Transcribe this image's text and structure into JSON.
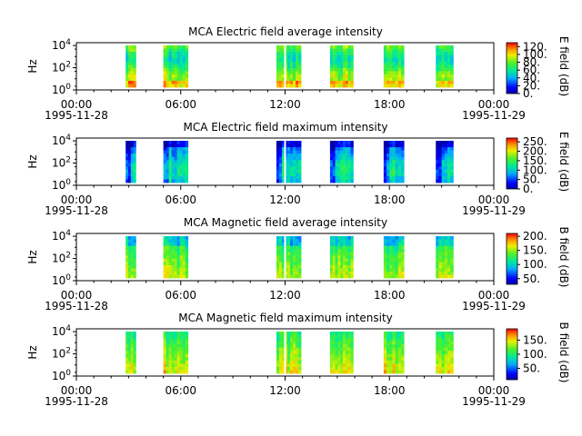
{
  "figure": {
    "x_ticks": [
      "00:00",
      "06:00",
      "12:00",
      "18:00",
      "00:00"
    ],
    "x_start_label": "1995-11-28",
    "x_end_label": "1995-11-29"
  },
  "chart_data": [
    {
      "type": "heatmap",
      "title": "MCA  Electric field average intensity",
      "ylabel": "Hz",
      "y_scale": "log",
      "y_tick_labels": [
        "10^0",
        "10^2",
        "10^4"
      ],
      "x_range": [
        "1995-11-28 00:00",
        "1995-11-29 00:00"
      ],
      "colorbar": {
        "label": "E field (dB)",
        "ticks": [
          "120.",
          "100.",
          "80.",
          "60.",
          "40.",
          "20.",
          "0."
        ],
        "range": [
          0,
          130
        ],
        "colormap": "rainbow"
      },
      "data_intervals": [
        [
          "02:50",
          "03:25"
        ],
        [
          "05:00",
          "06:25"
        ],
        [
          "11:30",
          "12:55"
        ],
        [
          "14:35",
          "15:55"
        ],
        [
          "17:40",
          "18:50"
        ],
        [
          "20:40",
          "21:40"
        ]
      ],
      "dominant_colors": [
        "#00d060",
        "#c8e020",
        "#ffd000",
        "#00a0ff"
      ]
    },
    {
      "type": "heatmap",
      "title": "MCA  Electric field maximum intensity",
      "ylabel": "Hz",
      "y_scale": "log",
      "y_tick_labels": [
        "10^0",
        "10^2",
        "10^4"
      ],
      "x_range": [
        "1995-11-28 00:00",
        "1995-11-29 00:00"
      ],
      "colorbar": {
        "label": "E field (dB)",
        "ticks": [
          "250.",
          "200.",
          "150.",
          "100.",
          "50.",
          "0."
        ],
        "range": [
          0,
          270
        ],
        "colormap": "rainbow"
      },
      "data_intervals": [
        [
          "02:50",
          "03:25"
        ],
        [
          "05:00",
          "06:25"
        ],
        [
          "11:30",
          "12:55"
        ],
        [
          "14:35",
          "15:55"
        ],
        [
          "17:40",
          "18:50"
        ],
        [
          "20:40",
          "21:40"
        ]
      ],
      "dominant_colors": [
        "#00c8e8",
        "#00a0ff",
        "#0040ff",
        "#00d080"
      ]
    },
    {
      "type": "heatmap",
      "title": "MCA  Magnetic field average intensity",
      "ylabel": "Hz",
      "y_scale": "log",
      "y_tick_labels": [
        "10^0",
        "10^2",
        "10^4"
      ],
      "x_range": [
        "1995-11-28 00:00",
        "1995-11-29 00:00"
      ],
      "colorbar": {
        "label": "B field (dB)",
        "ticks": [
          "200.",
          "150.",
          "100.",
          "50."
        ],
        "range": [
          30,
          210
        ],
        "colormap": "rainbow"
      },
      "data_intervals": [
        [
          "02:50",
          "03:25"
        ],
        [
          "05:00",
          "06:25"
        ],
        [
          "11:30",
          "12:55"
        ],
        [
          "14:35",
          "15:55"
        ],
        [
          "17:40",
          "18:50"
        ],
        [
          "20:40",
          "21:40"
        ]
      ],
      "dominant_colors": [
        "#00a0ff",
        "#00e0a0",
        "#40f040",
        "#e0f000"
      ]
    },
    {
      "type": "heatmap",
      "title": "MCA  Magnetic field maximum intensity",
      "ylabel": "Hz",
      "y_scale": "log",
      "y_tick_labels": [
        "10^0",
        "10^2",
        "10^4"
      ],
      "x_range": [
        "1995-11-28 00:00",
        "1995-11-29 00:00"
      ],
      "colorbar": {
        "label": "B field (dB)",
        "ticks": [
          "150.",
          "100.",
          "50."
        ],
        "range": [
          10,
          190
        ],
        "colormap": "rainbow"
      },
      "data_intervals": [
        [
          "02:50",
          "03:25"
        ],
        [
          "05:00",
          "06:25"
        ],
        [
          "11:30",
          "12:55"
        ],
        [
          "14:35",
          "15:55"
        ],
        [
          "17:40",
          "18:50"
        ],
        [
          "20:40",
          "21:40"
        ]
      ],
      "dominant_colors": [
        "#00e0a0",
        "#40f040",
        "#f0f000",
        "#ffc000"
      ]
    }
  ]
}
